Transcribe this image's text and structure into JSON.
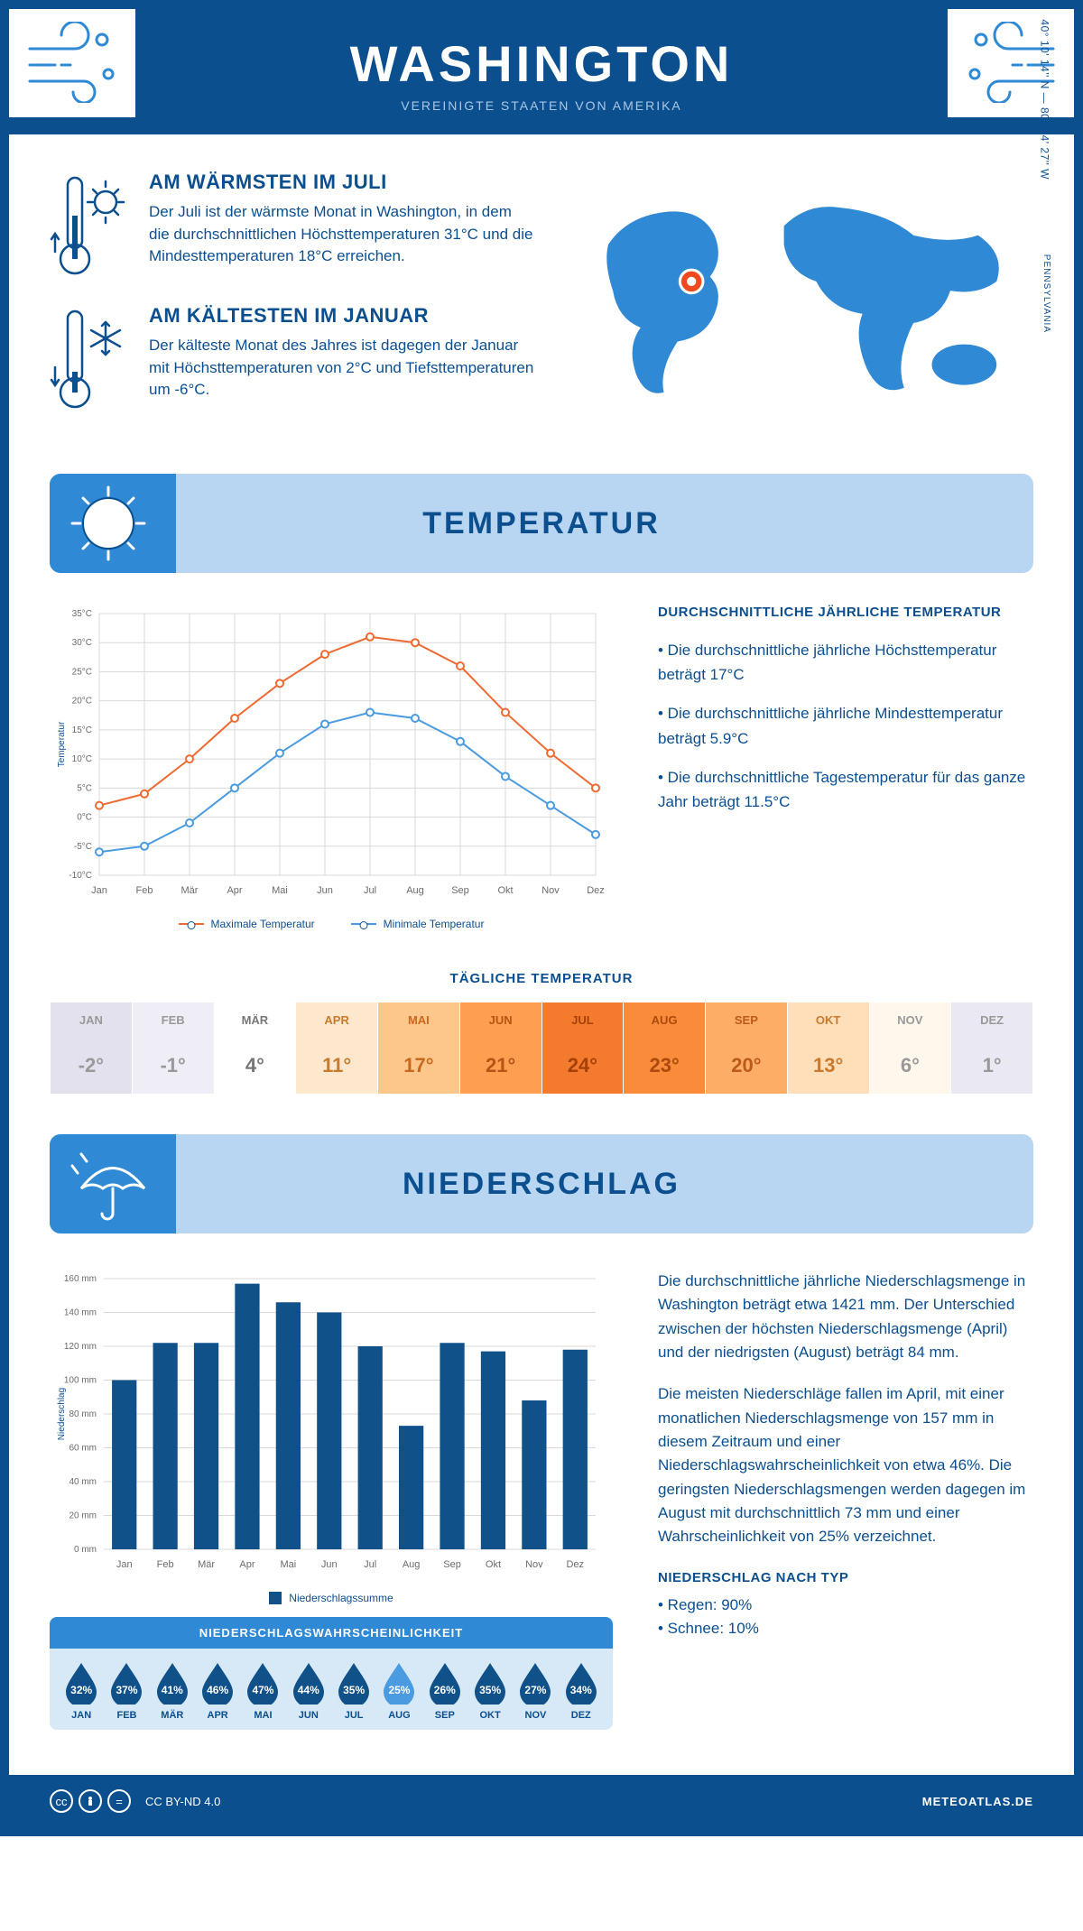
{
  "header": {
    "title": "WASHINGTON",
    "subtitle": "VEREINIGTE STAATEN VON AMERIKA"
  },
  "coords": "40° 10' 14'' N — 80° 14' 27'' W",
  "state": "PENNSYLVANIA",
  "warm": {
    "title": "AM WÄRMSTEN IM JULI",
    "text": "Der Juli ist der wärmste Monat in Washington, in dem die durchschnittlichen Höchsttemperaturen 31°C und die Mindesttemperaturen 18°C erreichen."
  },
  "cold": {
    "title": "AM KÄLTESTEN IM JANUAR",
    "text": "Der kälteste Monat des Jahres ist dagegen der Januar mit Höchsttemperaturen von 2°C und Tiefsttemperaturen um -6°C."
  },
  "temp_section": {
    "banner": "TEMPERATUR",
    "side_title": "DURCHSCHNITTLICHE JÄHRLICHE TEMPERATUR",
    "bullet1": "• Die durchschnittliche jährliche Höchsttemperatur beträgt 17°C",
    "bullet2": "• Die durchschnittliche jährliche Mindesttemperatur beträgt 5.9°C",
    "bullet3": "• Die durchschnittliche Tagestemperatur für das ganze Jahr beträgt 11.5°C",
    "monthly_title": "TÄGLICHE TEMPERATUR",
    "legend_max": "Maximale Temperatur",
    "legend_min": "Minimale Temperatur"
  },
  "temp_chart": {
    "type": "line",
    "ylim": [
      -10,
      35
    ],
    "ytick_step": 5,
    "y_unit": "°C",
    "ylabel": "Temperatur",
    "months": [
      "Jan",
      "Feb",
      "Mär",
      "Apr",
      "Mai",
      "Jun",
      "Jul",
      "Aug",
      "Sep",
      "Okt",
      "Nov",
      "Dez"
    ],
    "max_values": [
      2,
      4,
      10,
      17,
      23,
      28,
      31,
      30,
      26,
      18,
      11,
      5
    ],
    "min_values": [
      -6,
      -5,
      -1,
      5,
      11,
      16,
      18,
      17,
      13,
      7,
      2,
      -3
    ],
    "max_color": "#ef6a33",
    "min_color": "#4a9be0",
    "grid_color": "#d9d9d9",
    "line_width": 2,
    "marker": "circle"
  },
  "heatmap": {
    "months": [
      "JAN",
      "FEB",
      "MÄR",
      "APR",
      "MAI",
      "JUN",
      "JUL",
      "AUG",
      "SEP",
      "OKT",
      "NOV",
      "DEZ"
    ],
    "values": [
      "-2°",
      "-1°",
      "4°",
      "11°",
      "17°",
      "21°",
      "24°",
      "23°",
      "20°",
      "13°",
      "6°",
      "1°"
    ],
    "cell_colors": [
      "#e4e1ef",
      "#efedf5",
      "#ffffff",
      "#fee8cd",
      "#fdc78b",
      "#fd9e51",
      "#f47b2e",
      "#f98b3a",
      "#fdad66",
      "#fedfba",
      "#fff7ec",
      "#eae8f2"
    ],
    "text_colors": [
      "#999",
      "#999",
      "#777",
      "#c77b2d",
      "#c9681e",
      "#b75414",
      "#a34107",
      "#ab4a0c",
      "#bb5b17",
      "#cb7a2c",
      "#999",
      "#999"
    ]
  },
  "precip_section": {
    "banner": "NIEDERSCHLAG",
    "para1": "Die durchschnittliche jährliche Niederschlagsmenge in Washington beträgt etwa 1421 mm. Der Unterschied zwischen der höchsten Niederschlagsmenge (April) und der niedrigsten (August) beträgt 84 mm.",
    "para2": "Die meisten Niederschläge fallen im April, mit einer monatlichen Niederschlagsmenge von 157 mm in diesem Zeitraum und einer Niederschlagswahrscheinlichkeit von etwa 46%. Die geringsten Niederschlagsmengen werden dagegen im August mit durchschnittlich 73 mm und einer Wahrscheinlichkeit von 25% verzeichnet.",
    "type_title": "NIEDERSCHLAG NACH TYP",
    "type1": "• Regen: 90%",
    "type2": "• Schnee: 10%",
    "legend": "Niederschlagssumme"
  },
  "precip_chart": {
    "type": "bar",
    "ylim": [
      0,
      160
    ],
    "ytick_step": 20,
    "y_unit": " mm",
    "ylabel": "Niederschlag",
    "months": [
      "Jan",
      "Feb",
      "Mär",
      "Apr",
      "Mai",
      "Jun",
      "Jul",
      "Aug",
      "Sep",
      "Okt",
      "Nov",
      "Dez"
    ],
    "values": [
      100,
      122,
      122,
      157,
      146,
      140,
      120,
      73,
      122,
      117,
      88,
      118
    ],
    "bar_color": "#105189",
    "grid_color": "#d9d9d9",
    "bar_width": 0.6
  },
  "prob": {
    "title": "NIEDERSCHLAGSWAHRSCHEINLICHKEIT",
    "months": [
      "JAN",
      "FEB",
      "MÄR",
      "APR",
      "MAI",
      "JUN",
      "JUL",
      "AUG",
      "SEP",
      "OKT",
      "NOV",
      "DEZ"
    ],
    "values": [
      "32%",
      "37%",
      "41%",
      "46%",
      "47%",
      "44%",
      "35%",
      "25%",
      "26%",
      "35%",
      "27%",
      "34%"
    ],
    "dark_color": "#105189",
    "light_color": "#4a9be0",
    "light_index": 7
  },
  "footer": {
    "license": "CC BY-ND 4.0",
    "site": "METEOATLAS.DE"
  }
}
